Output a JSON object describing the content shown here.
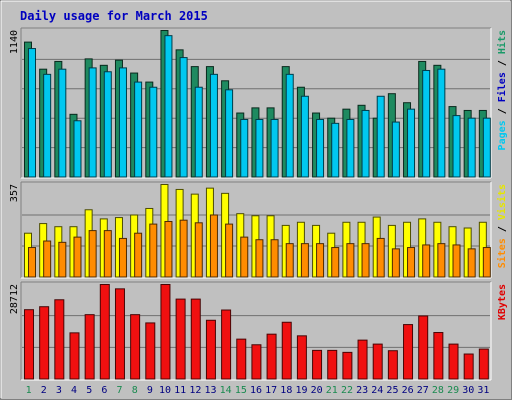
{
  "chart_data": [
    {
      "type": "bar",
      "title": "Daily usage for March 2015",
      "panel": "top",
      "max_label": "1140",
      "axis_label_parts": [
        {
          "text": "Pages",
          "color": "#00c8f0"
        },
        {
          "text": " / ",
          "color": "#000000"
        },
        {
          "text": "Files",
          "color": "#0000c0"
        },
        {
          "text": " / ",
          "color": "#000000"
        },
        {
          "text": "Hits",
          "color": "#1a9a68"
        }
      ],
      "ylim": [
        0,
        1140
      ],
      "categories": [
        "1",
        "2",
        "3",
        "4",
        "5",
        "6",
        "7",
        "8",
        "9",
        "10",
        "11",
        "12",
        "13",
        "14",
        "15",
        "16",
        "17",
        "18",
        "19",
        "20",
        "21",
        "22",
        "23",
        "24",
        "25",
        "26",
        "27",
        "28",
        "29",
        "30",
        "31"
      ],
      "series": [
        {
          "name": "Hits",
          "color": "#1e8a60",
          "values": [
            1050,
            840,
            900,
            490,
            920,
            870,
            910,
            810,
            740,
            1140,
            990,
            860,
            860,
            750,
            500,
            540,
            540,
            860,
            700,
            500,
            460,
            530,
            560,
            460,
            650,
            580,
            900,
            870,
            550,
            520,
            520
          ]
        },
        {
          "name": "Files",
          "color": "#00c8f0",
          "values": [
            1000,
            800,
            840,
            440,
            850,
            820,
            850,
            740,
            700,
            1100,
            930,
            700,
            800,
            680,
            450,
            450,
            450,
            800,
            630,
            450,
            420,
            450,
            520,
            630,
            430,
            530,
            830,
            840,
            480,
            460,
            460
          ]
        }
      ]
    },
    {
      "type": "bar",
      "panel": "middle",
      "max_label": "357",
      "axis_label_parts": [
        {
          "text": "Sites",
          "color": "#ff8c00"
        },
        {
          "text": " / ",
          "color": "#000000"
        },
        {
          "text": "Visits",
          "color": "#e6e600"
        }
      ],
      "ylim": [
        0,
        357
      ],
      "categories": [
        "1",
        "2",
        "3",
        "4",
        "5",
        "6",
        "7",
        "8",
        "9",
        "10",
        "11",
        "12",
        "13",
        "14",
        "15",
        "16",
        "17",
        "18",
        "19",
        "20",
        "21",
        "22",
        "23",
        "24",
        "25",
        "26",
        "27",
        "28",
        "29",
        "30",
        "31"
      ],
      "series": [
        {
          "name": "Visits",
          "color": "#ffff00",
          "values": [
            170,
            207,
            195,
            195,
            260,
            225,
            230,
            240,
            265,
            357,
            338,
            320,
            343,
            323,
            245,
            237,
            237,
            200,
            212,
            200,
            170,
            212,
            212,
            232,
            200,
            212,
            225,
            212,
            195,
            190,
            212
          ]
        },
        {
          "name": "Sites",
          "color": "#ff8c00",
          "values": [
            115,
            140,
            135,
            155,
            180,
            180,
            150,
            170,
            205,
            215,
            220,
            210,
            240,
            205,
            155,
            145,
            145,
            130,
            130,
            130,
            115,
            130,
            130,
            150,
            110,
            115,
            125,
            130,
            125,
            110,
            115
          ]
        }
      ]
    },
    {
      "type": "bar",
      "panel": "bottom",
      "max_label": "28712",
      "axis_label_parts": [
        {
          "text": "KBytes",
          "color": "#e00000"
        }
      ],
      "ylim": [
        0,
        28712
      ],
      "categories": [
        "1",
        "2",
        "3",
        "4",
        "5",
        "6",
        "7",
        "8",
        "9",
        "10",
        "11",
        "12",
        "13",
        "14",
        "15",
        "16",
        "17",
        "18",
        "19",
        "20",
        "21",
        "22",
        "23",
        "24",
        "25",
        "26",
        "27",
        "28",
        "29",
        "30",
        "31"
      ],
      "series": [
        {
          "name": "KBytes",
          "color": "#f01010",
          "values": [
            21100,
            22000,
            24100,
            14100,
            19600,
            28712,
            27400,
            19600,
            17100,
            28712,
            24300,
            24300,
            17900,
            21000,
            12200,
            10500,
            13700,
            17300,
            13200,
            8800,
            8800,
            8200,
            11900,
            10700,
            8700,
            16600,
            19200,
            14200,
            10700,
            7700,
            9200
          ]
        }
      ]
    }
  ],
  "day_label_colors": [
    "#1a8a50",
    "#000080",
    "#000080",
    "#000080",
    "#000080",
    "#000080",
    "#1a8a50",
    "#1a8a50",
    "#000080",
    "#000080",
    "#000080",
    "#000080",
    "#000080",
    "#1a8a50",
    "#1a8a50",
    "#000080",
    "#000080",
    "#000080",
    "#000080",
    "#000080",
    "#1a8a50",
    "#1a8a50",
    "#000080",
    "#000080",
    "#000080",
    "#000080",
    "#000080",
    "#1a8a50",
    "#1a8a50",
    "#000080",
    "#000080"
  ]
}
